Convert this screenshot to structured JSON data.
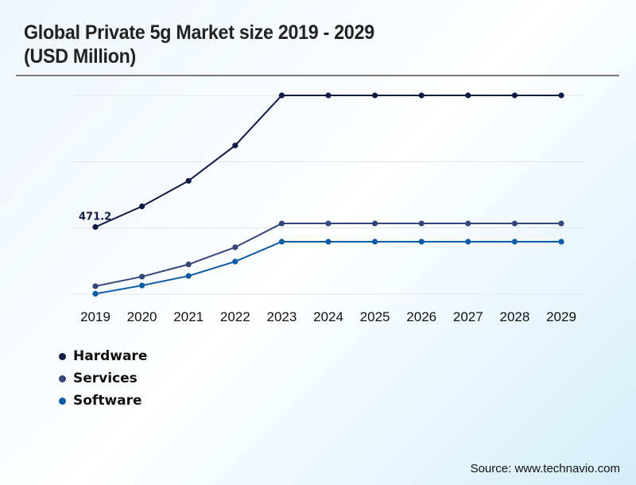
{
  "header": {
    "title_line1": "Global Private 5g Market size 2019 - 2029",
    "title_line2": "(USD Million)"
  },
  "chart_data": {
    "type": "line",
    "title": "Global Private 5g Market size 2019 - 2029 (USD Million)",
    "xlabel": "",
    "ylabel": "",
    "x": [
      "2019",
      "2020",
      "2021",
      "2022",
      "2023",
      "2024",
      "2025",
      "2026",
      "2027",
      "2028",
      "2029"
    ],
    "ylim": [
      0,
      1394
    ],
    "yticks": [
      0,
      465,
      929,
      1394
    ],
    "y_tick_labels_visible": false,
    "grid": true,
    "legend_position": "bottom-left",
    "series": [
      {
        "name": "Hardware",
        "color": "#0d1b45",
        "values": [
          471.2,
          616,
          795,
          1043,
          1394,
          1394,
          1394,
          1394,
          1394,
          1394,
          1394
        ]
      },
      {
        "name": "Services",
        "color": "#35477a",
        "values": [
          56,
          123,
          209,
          329,
          496,
          496,
          496,
          496,
          496,
          496,
          496
        ]
      },
      {
        "name": "Software",
        "color": "#0b5aa6",
        "values": [
          3,
          61,
          128,
          229,
          368,
          368,
          368,
          368,
          368,
          368,
          368
        ]
      }
    ],
    "annotations": [
      {
        "series": "Hardware",
        "x": "2019",
        "text": "471.2"
      }
    ]
  },
  "legend": [
    {
      "label": "Hardware",
      "color": "#0d1b45"
    },
    {
      "label": "Services",
      "color": "#35477a"
    },
    {
      "label": "Software",
      "color": "#0b5aa6"
    }
  ],
  "footer": {
    "source": "Source: www.technavio.com"
  }
}
